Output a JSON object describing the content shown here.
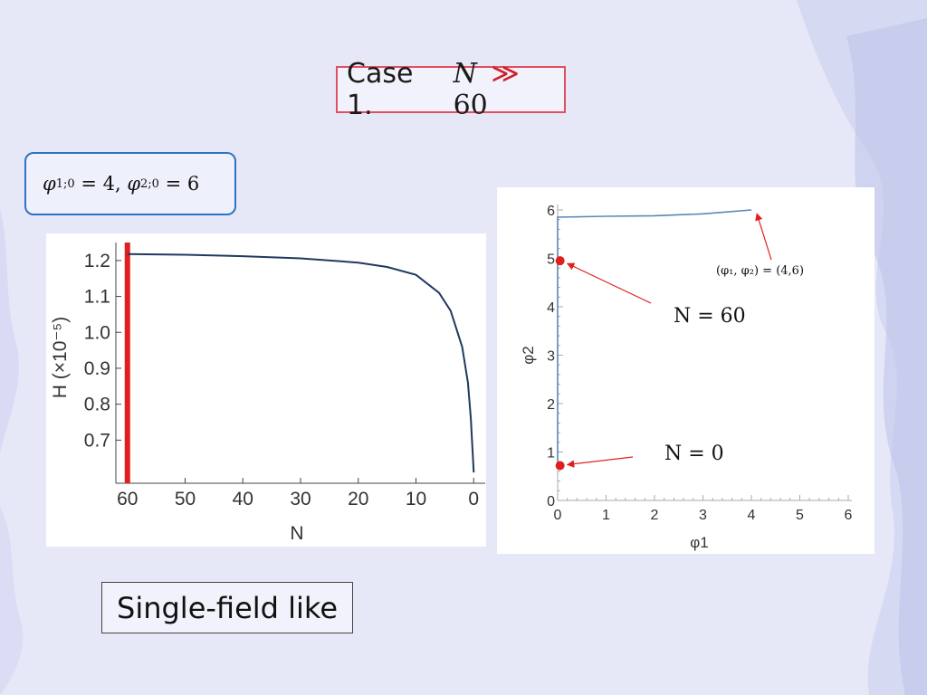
{
  "slide": {
    "title_prefix": "Case 1.",
    "title_var": "N",
    "title_rel": "≫",
    "title_value": "60",
    "init_phi1": "φ",
    "init_sub1": "1;0",
    "init_eq1": " = 4, ",
    "init_phi2": "φ",
    "init_sub2": "2;0",
    "init_eq2": " = 6",
    "bottom_label": "Single-field like"
  },
  "chart_data": [
    {
      "type": "line",
      "title": "",
      "xlabel": "N",
      "ylabel": "H (×10⁻⁵)",
      "x_ticks": [
        "60",
        "50",
        "40",
        "30",
        "20",
        "10",
        "0"
      ],
      "y_ticks": [
        "1.2",
        "1.1",
        "1.0",
        "0.9",
        "0.8",
        "0.7"
      ],
      "xlim": [
        62,
        -2
      ],
      "ylim": [
        0.58,
        1.25
      ],
      "x_reversed": true,
      "series": [
        {
          "x": [
            60,
            50,
            40,
            30,
            20,
            15,
            10,
            6,
            4,
            2,
            1,
            0.5,
            0
          ],
          "y": [
            1.218,
            1.216,
            1.212,
            1.206,
            1.194,
            1.182,
            1.16,
            1.11,
            1.06,
            0.96,
            0.86,
            0.76,
            0.61
          ]
        }
      ],
      "vline": {
        "x": 60,
        "color": "#e01e1e"
      },
      "line_color": "#1f3a5c"
    },
    {
      "type": "line",
      "title": "",
      "xlabel": "φ1",
      "ylabel": "φ2",
      "x_ticks": [
        "0",
        "1",
        "2",
        "3",
        "4",
        "5",
        "6"
      ],
      "y_ticks": [
        "0",
        "1",
        "2",
        "3",
        "4",
        "5",
        "6"
      ],
      "xlim": [
        0,
        6
      ],
      "ylim": [
        0,
        6
      ],
      "series": [
        {
          "x": [
            0,
            0,
            0,
            0,
            0,
            0.5,
            1,
            2,
            3,
            4
          ],
          "y": [
            0.72,
            2,
            3,
            4.5,
            5.85,
            5.86,
            5.87,
            5.88,
            5.92,
            6.0
          ]
        }
      ],
      "line_color": "#5a86b8",
      "points": [
        {
          "x": 0.05,
          "y": 4.95,
          "label": "N = 60",
          "color": "#e01e1e"
        },
        {
          "x": 0.05,
          "y": 0.72,
          "label": "N = 0",
          "color": "#e01e1e"
        }
      ],
      "endpoint_annotation": {
        "x": 4,
        "y": 6,
        "label": "(φ₁, φ₂) = (4,6)"
      }
    }
  ]
}
